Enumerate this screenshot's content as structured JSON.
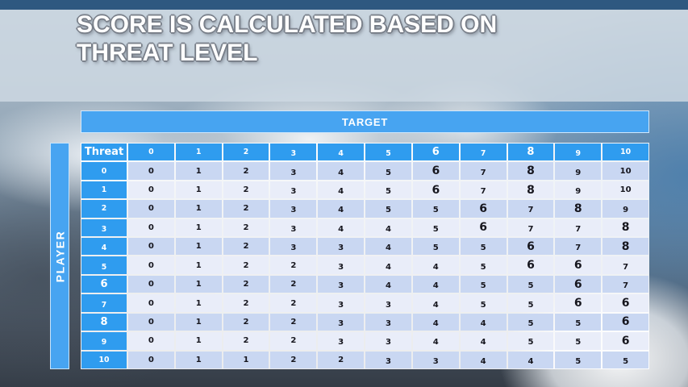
{
  "slide": {
    "title_line1": "SCORE IS CALCULATED BASED ON",
    "title_line2": "THREAT LEVEL"
  },
  "table": {
    "target_label": "TARGET",
    "player_label": "PLAYER",
    "corner_label": "Threat",
    "column_headers": [
      "0",
      "1",
      "2",
      "3",
      "4",
      "5",
      "6",
      "7",
      "8",
      "9",
      "10"
    ],
    "rows": [
      {
        "header": "0",
        "values": [
          "0",
          "1",
          "2",
          "3",
          "4",
          "5",
          "6",
          "7",
          "8",
          "9",
          "10"
        ]
      },
      {
        "header": "1",
        "values": [
          "0",
          "1",
          "2",
          "3",
          "4",
          "5",
          "6",
          "7",
          "8",
          "9",
          "10"
        ]
      },
      {
        "header": "2",
        "values": [
          "0",
          "1",
          "2",
          "3",
          "4",
          "5",
          "5",
          "6",
          "7",
          "8",
          "9"
        ]
      },
      {
        "header": "3",
        "values": [
          "0",
          "1",
          "2",
          "3",
          "4",
          "4",
          "5",
          "6",
          "7",
          "7",
          "8"
        ]
      },
      {
        "header": "4",
        "values": [
          "0",
          "1",
          "2",
          "3",
          "3",
          "4",
          "5",
          "5",
          "6",
          "7",
          "8"
        ]
      },
      {
        "header": "5",
        "values": [
          "0",
          "1",
          "2",
          "2",
          "3",
          "4",
          "4",
          "5",
          "6",
          "6",
          "7"
        ]
      },
      {
        "header": "6",
        "values": [
          "0",
          "1",
          "2",
          "2",
          "3",
          "4",
          "4",
          "5",
          "5",
          "6",
          "7"
        ]
      },
      {
        "header": "7",
        "values": [
          "0",
          "1",
          "2",
          "2",
          "3",
          "3",
          "4",
          "5",
          "5",
          "6",
          "6"
        ]
      },
      {
        "header": "8",
        "values": [
          "0",
          "1",
          "2",
          "2",
          "3",
          "3",
          "4",
          "4",
          "5",
          "5",
          "6"
        ]
      },
      {
        "header": "9",
        "values": [
          "0",
          "1",
          "2",
          "2",
          "3",
          "3",
          "4",
          "4",
          "5",
          "5",
          "6"
        ]
      },
      {
        "header": "10",
        "values": [
          "0",
          "1",
          "1",
          "2",
          "2",
          "3",
          "3",
          "4",
          "4",
          "5",
          "5"
        ]
      }
    ]
  },
  "colors": {
    "accent_blue": "#2F9CEF",
    "bar_blue": "#47A4F1",
    "row_light": "#C9D7F2",
    "row_pale": "#E9EDF9",
    "top_strip": "#2E5880",
    "header_text": "#FFFFFF",
    "body_text": "#16161E"
  }
}
